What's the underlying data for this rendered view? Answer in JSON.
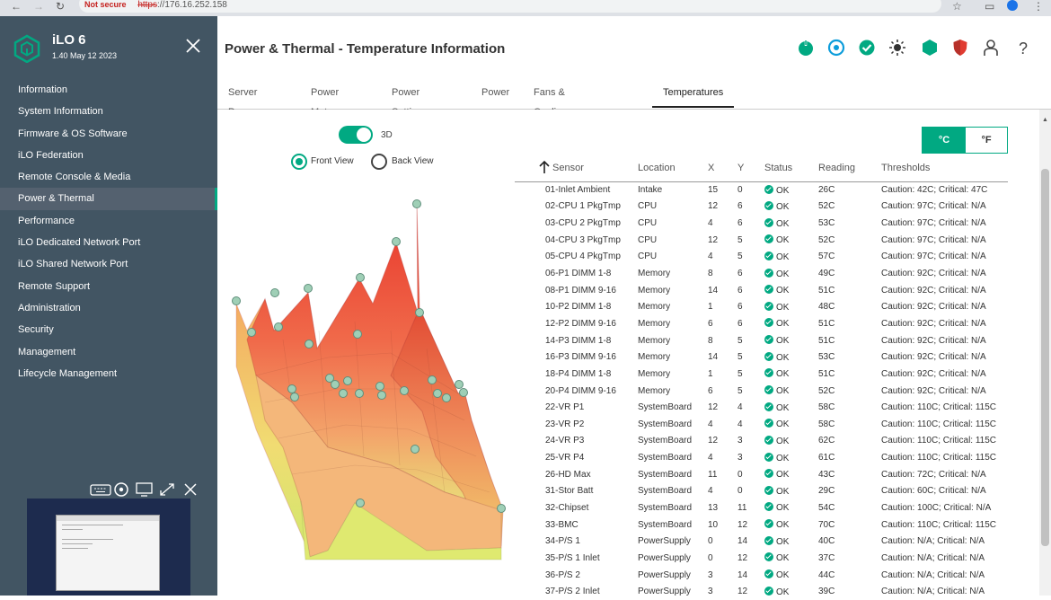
{
  "browser": {
    "security_label": "Not secure",
    "url_scheme": "https",
    "url_rest": "://176.16.252.158"
  },
  "sidebar": {
    "product_name": "iLO 6",
    "product_version": "1.40 May 12 2023",
    "items": [
      {
        "label": "Information"
      },
      {
        "label": "System Information"
      },
      {
        "label": "Firmware & OS Software"
      },
      {
        "label": "iLO Federation"
      },
      {
        "label": "Remote Console & Media"
      },
      {
        "label": "Power & Thermal",
        "active": true
      },
      {
        "label": "Performance"
      },
      {
        "label": "iLO Dedicated Network Port"
      },
      {
        "label": "iLO Shared Network Port"
      },
      {
        "label": "Remote Support"
      },
      {
        "label": "Administration"
      },
      {
        "label": "Security"
      },
      {
        "label": "Management"
      },
      {
        "label": "Lifecycle Management"
      }
    ]
  },
  "header": {
    "title": "Power & Thermal - Temperature Information",
    "status_icons": [
      "power-icon",
      "uid-icon",
      "health-check-icon",
      "brightness-icon",
      "hexagon-icon",
      "shield-icon",
      "user-icon",
      "help-icon"
    ],
    "tabs": [
      "Server Power",
      "Power Meter",
      "Power Settings",
      "Power",
      "Fans & Cooling Modules",
      "Temperatures"
    ],
    "active_tab": "Temperatures"
  },
  "view": {
    "toggle_label": "3D",
    "toggle_on": true,
    "front_label": "Front View",
    "back_label": "Back View",
    "selected_view": "Front View",
    "unit_c": "°C",
    "unit_f": "°F",
    "selected_unit": "°C"
  },
  "accent_color": "#01a982",
  "table": {
    "headers": [
      "Sensor",
      "Location",
      "X",
      "Y",
      "Status",
      "Reading",
      "Thresholds"
    ],
    "rows": [
      [
        "01-Inlet Ambient",
        "Intake",
        "15",
        "0",
        "OK",
        "26C",
        "Caution: 42C; Critical: 47C"
      ],
      [
        "02-CPU 1 PkgTmp",
        "CPU",
        "12",
        "6",
        "OK",
        "52C",
        "Caution: 97C; Critical: N/A"
      ],
      [
        "03-CPU 2 PkgTmp",
        "CPU",
        "4",
        "6",
        "OK",
        "53C",
        "Caution: 97C; Critical: N/A"
      ],
      [
        "04-CPU 3 PkgTmp",
        "CPU",
        "12",
        "5",
        "OK",
        "52C",
        "Caution: 97C; Critical: N/A"
      ],
      [
        "05-CPU 4 PkgTmp",
        "CPU",
        "4",
        "5",
        "OK",
        "57C",
        "Caution: 97C; Critical: N/A"
      ],
      [
        "06-P1 DIMM 1-8",
        "Memory",
        "8",
        "6",
        "OK",
        "49C",
        "Caution: 92C; Critical: N/A"
      ],
      [
        "08-P1 DIMM 9-16",
        "Memory",
        "14",
        "6",
        "OK",
        "51C",
        "Caution: 92C; Critical: N/A"
      ],
      [
        "10-P2 DIMM 1-8",
        "Memory",
        "1",
        "6",
        "OK",
        "48C",
        "Caution: 92C; Critical: N/A"
      ],
      [
        "12-P2 DIMM 9-16",
        "Memory",
        "6",
        "6",
        "OK",
        "51C",
        "Caution: 92C; Critical: N/A"
      ],
      [
        "14-P3 DIMM 1-8",
        "Memory",
        "8",
        "5",
        "OK",
        "51C",
        "Caution: 92C; Critical: N/A"
      ],
      [
        "16-P3 DIMM 9-16",
        "Memory",
        "14",
        "5",
        "OK",
        "53C",
        "Caution: 92C; Critical: N/A"
      ],
      [
        "18-P4 DIMM 1-8",
        "Memory",
        "1",
        "5",
        "OK",
        "51C",
        "Caution: 92C; Critical: N/A"
      ],
      [
        "20-P4 DIMM 9-16",
        "Memory",
        "6",
        "5",
        "OK",
        "52C",
        "Caution: 92C; Critical: N/A"
      ],
      [
        "22-VR P1",
        "SystemBoard",
        "12",
        "4",
        "OK",
        "58C",
        "Caution: 110C; Critical: 115C"
      ],
      [
        "23-VR P2",
        "SystemBoard",
        "4",
        "4",
        "OK",
        "58C",
        "Caution: 110C; Critical: 115C"
      ],
      [
        "24-VR P3",
        "SystemBoard",
        "12",
        "3",
        "OK",
        "62C",
        "Caution: 110C; Critical: 115C"
      ],
      [
        "25-VR P4",
        "SystemBoard",
        "4",
        "3",
        "OK",
        "61C",
        "Caution: 110C; Critical: 115C"
      ],
      [
        "26-HD Max",
        "SystemBoard",
        "11",
        "0",
        "OK",
        "43C",
        "Caution: 72C; Critical: N/A"
      ],
      [
        "31-Stor Batt",
        "SystemBoard",
        "4",
        "0",
        "OK",
        "29C",
        "Caution: 60C; Critical: N/A"
      ],
      [
        "32-Chipset",
        "SystemBoard",
        "13",
        "11",
        "OK",
        "54C",
        "Caution: 100C; Critical: N/A"
      ],
      [
        "33-BMC",
        "SystemBoard",
        "10",
        "12",
        "OK",
        "70C",
        "Caution: 110C; Critical: 115C"
      ],
      [
        "34-P/S 1",
        "PowerSupply",
        "0",
        "14",
        "OK",
        "40C",
        "Caution: N/A; Critical: N/A"
      ],
      [
        "35-P/S 1 Inlet",
        "PowerSupply",
        "0",
        "12",
        "OK",
        "37C",
        "Caution: N/A; Critical: N/A"
      ],
      [
        "36-P/S 2",
        "PowerSupply",
        "3",
        "14",
        "OK",
        "44C",
        "Caution: N/A; Critical: N/A"
      ],
      [
        "37-P/S 2 Inlet",
        "PowerSupply",
        "3",
        "12",
        "OK",
        "39C",
        "Caution: N/A; Critical: N/A"
      ]
    ]
  }
}
